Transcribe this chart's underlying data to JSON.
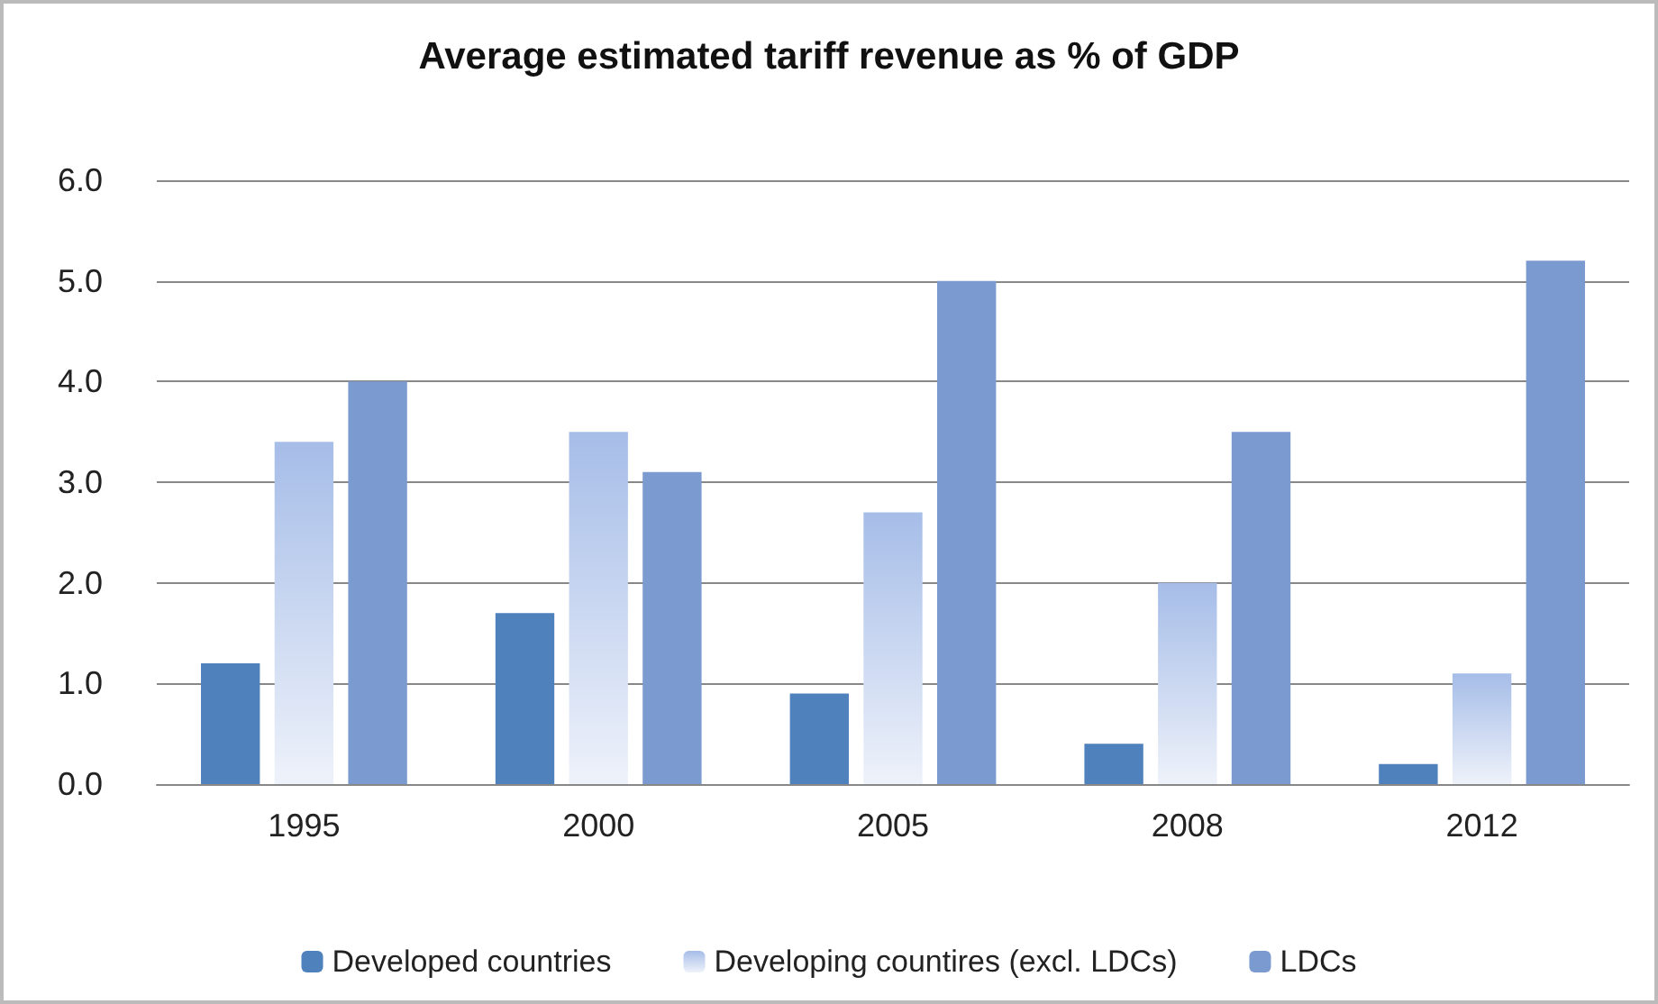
{
  "chart_data": {
    "type": "bar",
    "title": "Average estimated tariff revenue as % of GDP",
    "categories": [
      "1995",
      "2000",
      "2005",
      "2008",
      "2012"
    ],
    "series": [
      {
        "name": "Developed countries",
        "color": "#4f81bd",
        "values": [
          1.2,
          1.7,
          0.9,
          0.4,
          0.2
        ]
      },
      {
        "name": "Developing countires (excl. LDCs)",
        "color": "#a6bde8",
        "values": [
          3.4,
          3.5,
          2.7,
          2.0,
          1.1
        ]
      },
      {
        "name": "LDCs",
        "color": "#7a9ad0",
        "values": [
          4.0,
          3.1,
          5.0,
          3.5,
          5.2
        ]
      }
    ],
    "ylim": [
      0,
      6
    ],
    "yticks": [
      {
        "value": 0,
        "label": "0.0"
      },
      {
        "value": 1,
        "label": "1.0"
      },
      {
        "value": 2,
        "label": "2.0"
      },
      {
        "value": 3,
        "label": "3.0"
      },
      {
        "value": 4,
        "label": "4.0"
      },
      {
        "value": 5,
        "label": "5.0"
      },
      {
        "value": 6,
        "label": "6.0"
      }
    ],
    "grid": "y",
    "legend": "bottom"
  }
}
